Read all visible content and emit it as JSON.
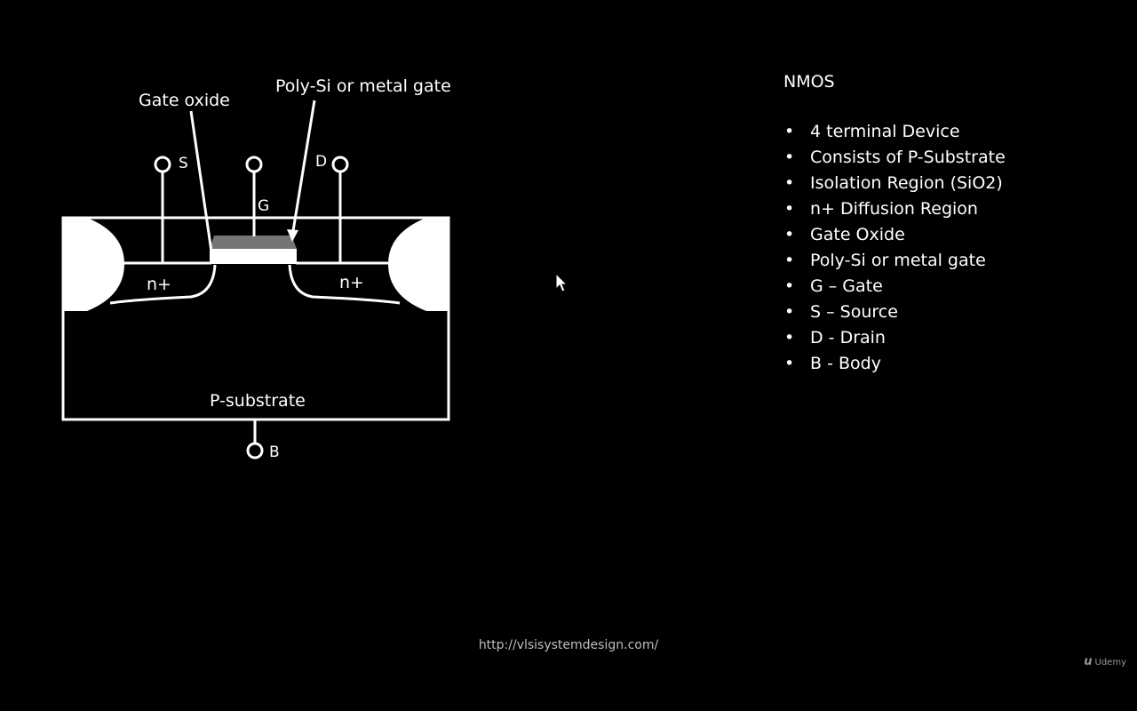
{
  "diagram": {
    "callouts": {
      "gate_oxide": "Gate oxide",
      "gate_material": "Poly-Si or metal gate"
    },
    "terminals": {
      "source": "S",
      "gate": "G",
      "drain": "D",
      "body": "B"
    },
    "regions": {
      "source_diffusion": "n+",
      "drain_diffusion": "n+",
      "substrate": "P-substrate"
    }
  },
  "notes": {
    "title": "NMOS",
    "bullets": [
      "4 terminal Device",
      "Consists of P-Substrate",
      "Isolation Region (SiO2)",
      "n+ Diffusion Region",
      "Gate Oxide",
      "Poly-Si or metal gate",
      "G – Gate",
      "S – Source",
      "D - Drain",
      "B - Body"
    ]
  },
  "footer": {
    "url": "http://vlsisystemdesign.com/",
    "brand": "Udemy",
    "brand_mark": "u"
  }
}
